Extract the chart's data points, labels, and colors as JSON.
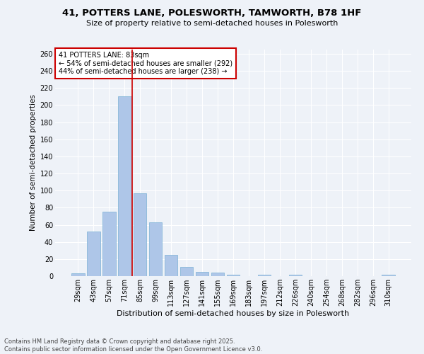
{
  "title1": "41, POTTERS LANE, POLESWORTH, TAMWORTH, B78 1HF",
  "title2": "Size of property relative to semi-detached houses in Polesworth",
  "xlabel": "Distribution of semi-detached houses by size in Polesworth",
  "ylabel": "Number of semi-detached properties",
  "bar_color": "#aec6e8",
  "bar_edge_color": "#7ab0d4",
  "categories": [
    "29sqm",
    "43sqm",
    "57sqm",
    "71sqm",
    "85sqm",
    "99sqm",
    "113sqm",
    "127sqm",
    "141sqm",
    "155sqm",
    "169sqm",
    "183sqm",
    "197sqm",
    "212sqm",
    "226sqm",
    "240sqm",
    "254sqm",
    "268sqm",
    "282sqm",
    "296sqm",
    "310sqm"
  ],
  "values": [
    3,
    52,
    75,
    210,
    97,
    63,
    25,
    11,
    5,
    4,
    2,
    0,
    2,
    0,
    2,
    0,
    0,
    0,
    0,
    0,
    2
  ],
  "ylim": [
    0,
    265
  ],
  "yticks": [
    0,
    20,
    40,
    60,
    80,
    100,
    120,
    140,
    160,
    180,
    200,
    220,
    240,
    260
  ],
  "property_line_index": 3.5,
  "annotation_title": "41 POTTERS LANE: 83sqm",
  "annotation_line1": "← 54% of semi-detached houses are smaller (292)",
  "annotation_line2": "44% of semi-detached houses are larger (238) →",
  "footer1": "Contains HM Land Registry data © Crown copyright and database right 2025.",
  "footer2": "Contains public sector information licensed under the Open Government Licence v3.0.",
  "bg_color": "#eef2f8",
  "grid_color": "#ffffff",
  "annotation_box_bg": "#ffffff",
  "annotation_box_edge": "#cc0000",
  "line_color": "#cc0000",
  "title1_fontsize": 9.5,
  "title2_fontsize": 8,
  "ylabel_fontsize": 7.5,
  "xlabel_fontsize": 8,
  "tick_fontsize": 7,
  "annotation_fontsize": 7,
  "footer_fontsize": 6
}
